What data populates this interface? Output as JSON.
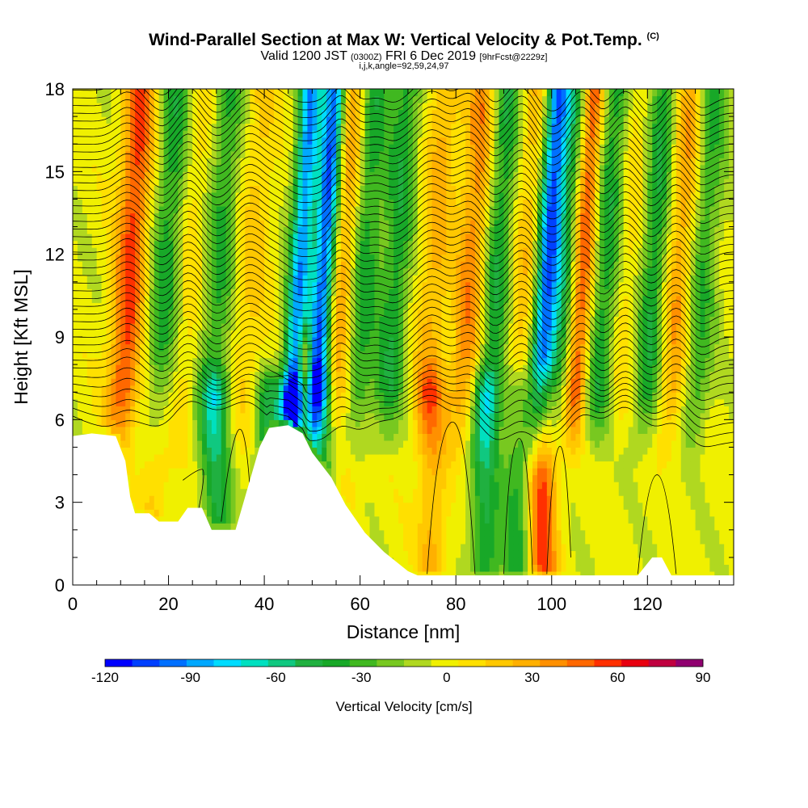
{
  "header": {
    "title": "Wind-Parallel Section at Max W: Vertical Velocity & Pot.Temp.",
    "title_tag": "(C)",
    "subtitle_main": "Valid 1200 JST",
    "subtitle_utc": "(0300Z)",
    "subtitle_date": "FRI 6 Dec 2019",
    "subtitle_fcst": "[9hrFcst@2229z]",
    "subsubtitle": "i,j,k,angle=92,59,24,97"
  },
  "chart_data": {
    "type": "heatmap",
    "xlabel": "Distance [nm]",
    "ylabel": "Height [Kft MSL]",
    "xlim": [
      0,
      138
    ],
    "ylim": [
      0,
      18
    ],
    "x_ticks": [
      "0",
      "20",
      "40",
      "60",
      "80",
      "100",
      "120"
    ],
    "y_ticks": [
      "0",
      "3",
      "6",
      "9",
      "12",
      "15",
      "18"
    ],
    "colorbar": {
      "label": "Vertical Velocity [cm/s]",
      "range": [
        -120,
        90
      ],
      "step": 10,
      "tick_labels": [
        "-120",
        "-90",
        "-60",
        "-30",
        "0",
        "30",
        "60",
        "90"
      ],
      "colors": [
        "#0000ff",
        "#0040ff",
        "#0070ff",
        "#00a8ff",
        "#00dcff",
        "#00e0c0",
        "#10c880",
        "#20b040",
        "#18a828",
        "#40b820",
        "#78c820",
        "#b0d820",
        "#f0f000",
        "#ffe000",
        "#ffc800",
        "#ffb000",
        "#ff9000",
        "#ff6800",
        "#ff3000",
        "#e80010",
        "#c00040",
        "#900070"
      ]
    },
    "vertical_velocity_features_cm_s": [
      {
        "x": 11.5,
        "w": 60
      },
      {
        "x": 19,
        "w": -40
      },
      {
        "x": 24,
        "w": 15
      },
      {
        "x": 30,
        "w": -35
      },
      {
        "x": 37,
        "w": 20
      },
      {
        "x": 47,
        "w": -90
      },
      {
        "x": 52,
        "w": -110
      },
      {
        "x": 56,
        "w": 45
      },
      {
        "x": 60,
        "w": -45
      },
      {
        "x": 67,
        "w": -40
      },
      {
        "x": 75,
        "w": 30
      },
      {
        "x": 83,
        "w": 45
      },
      {
        "x": 88,
        "w": -45
      },
      {
        "x": 94,
        "w": 25
      },
      {
        "x": 98.5,
        "w": -95
      },
      {
        "x": 102,
        "w": -45
      },
      {
        "x": 106,
        "w": 65
      },
      {
        "x": 111,
        "w": -45
      },
      {
        "x": 115,
        "w": 20
      },
      {
        "x": 121,
        "w": -45
      },
      {
        "x": 126,
        "w": 40
      },
      {
        "x": 131,
        "w": -35
      }
    ],
    "low_level_features_cm_s": [
      {
        "x": 98,
        "w": 60
      },
      {
        "x": 93,
        "w": -40
      },
      {
        "x": 86,
        "w": -45
      },
      {
        "x": 75,
        "w": 30
      },
      {
        "x": 52,
        "w": -45
      },
      {
        "x": 57,
        "w": 15
      },
      {
        "x": 41,
        "w": -45
      },
      {
        "x": 30,
        "w": -45
      },
      {
        "x": 17,
        "w": 20
      }
    ],
    "terrain_kft": [
      [
        0,
        5.4
      ],
      [
        4,
        5.5
      ],
      [
        9,
        5.4
      ],
      [
        11,
        4.5
      ],
      [
        12,
        3.2
      ],
      [
        13,
        2.6
      ],
      [
        16,
        2.6
      ],
      [
        18,
        2.3
      ],
      [
        22,
        2.3
      ],
      [
        24,
        2.8
      ],
      [
        27,
        2.8
      ],
      [
        29,
        2.0
      ],
      [
        34,
        2.0
      ],
      [
        37,
        3.8
      ],
      [
        39,
        5.0
      ],
      [
        41,
        5.7
      ],
      [
        45,
        5.8
      ],
      [
        48,
        5.5
      ],
      [
        50,
        4.8
      ],
      [
        54,
        3.9
      ],
      [
        57,
        2.9
      ],
      [
        61,
        1.9
      ],
      [
        65,
        1.2
      ],
      [
        70,
        0.5
      ],
      [
        72,
        0.35
      ],
      [
        118,
        0.35
      ],
      [
        121,
        1.0
      ],
      [
        123,
        1.0
      ],
      [
        125,
        0.35
      ],
      [
        138,
        0.35
      ]
    ]
  }
}
